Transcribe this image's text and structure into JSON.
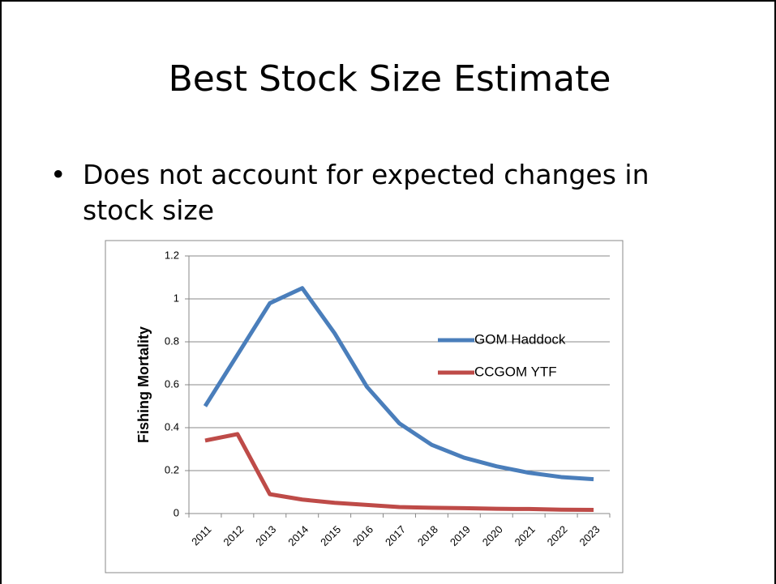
{
  "slide": {
    "title": "Best Stock Size Estimate",
    "bullets": [
      "Does not account for expected changes in stock size"
    ]
  },
  "chart_data": {
    "type": "line",
    "y_label": "Fishing Mortality",
    "categories": [
      "2011",
      "2012",
      "2013",
      "2014",
      "2015",
      "2016",
      "2017",
      "2018",
      "2019",
      "2020",
      "2021",
      "2022",
      "2023"
    ],
    "series": [
      {
        "name": "GOM Haddock",
        "color": "#4a7ebb",
        "values": [
          0.5,
          0.74,
          0.98,
          1.05,
          0.84,
          0.59,
          0.42,
          0.32,
          0.26,
          0.22,
          0.19,
          0.17,
          0.16
        ]
      },
      {
        "name": "CCGOM YTF",
        "color": "#be4b48",
        "values": [
          0.34,
          0.37,
          0.09,
          0.065,
          0.05,
          0.04,
          0.03,
          0.027,
          0.025,
          0.022,
          0.021,
          0.018,
          0.017
        ]
      }
    ],
    "ylim": [
      0,
      1.2
    ],
    "yticks": [
      0,
      0.2,
      0.4,
      0.6,
      0.8,
      1,
      1.2
    ],
    "grid": true
  }
}
